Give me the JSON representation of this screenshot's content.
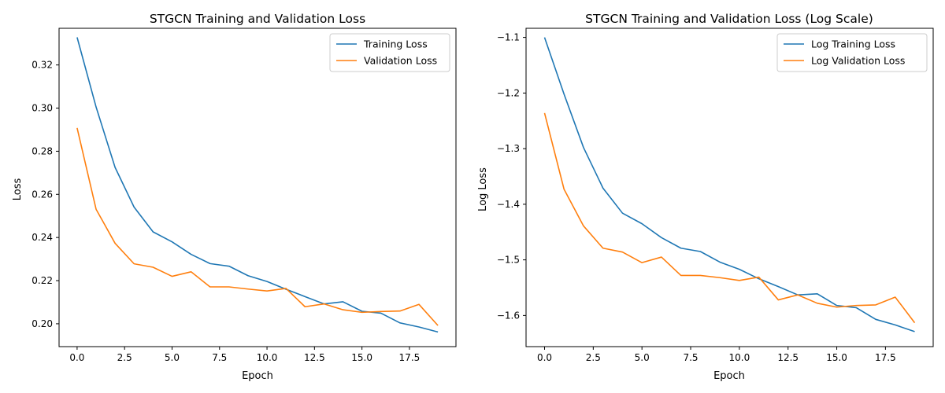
{
  "chart_data": [
    {
      "type": "line",
      "title": "STGCN Training and Validation Loss",
      "xlabel": "Epoch",
      "ylabel": "Loss",
      "x": [
        0,
        1,
        2,
        3,
        4,
        5,
        6,
        7,
        8,
        9,
        10,
        11,
        12,
        13,
        14,
        15,
        16,
        17,
        18,
        19
      ],
      "xlim": [
        -0.95,
        19.95
      ],
      "ylim": [
        0.1894,
        0.337
      ],
      "xticks": [
        0.0,
        2.5,
        5.0,
        7.5,
        10.0,
        12.5,
        15.0,
        17.5
      ],
      "xtick_labels": [
        "0.0",
        "2.5",
        "5.0",
        "7.5",
        "10.0",
        "12.5",
        "15.0",
        "17.5"
      ],
      "yticks": [
        0.2,
        0.22,
        0.24,
        0.26,
        0.28,
        0.3,
        0.32
      ],
      "ytick_labels": [
        "0.20",
        "0.22",
        "0.24",
        "0.26",
        "0.28",
        "0.30",
        "0.32"
      ],
      "grid": false,
      "legend_position": "top-right",
      "series": [
        {
          "name": "Training Loss",
          "color": "#1f77b4",
          "values": [
            0.3328,
            0.3005,
            0.2725,
            0.2541,
            0.2426,
            0.238,
            0.2322,
            0.2279,
            0.2267,
            0.2223,
            0.2196,
            0.216,
            0.2126,
            0.2092,
            0.2102,
            0.2058,
            0.2049,
            0.2004,
            0.1985,
            0.1962
          ]
        },
        {
          "name": "Validation Loss",
          "color": "#ff7f0e",
          "values": [
            0.2908,
            0.2531,
            0.2373,
            0.2278,
            0.2262,
            0.222,
            0.2241,
            0.2171,
            0.2171,
            0.2161,
            0.2152,
            0.2164,
            0.2079,
            0.2092,
            0.2065,
            0.2053,
            0.2057,
            0.2059,
            0.209,
            0.1992
          ]
        }
      ]
    },
    {
      "type": "line",
      "title": "STGCN Training and Validation Loss (Log Scale)",
      "xlabel": "Epoch",
      "ylabel": "Log Loss",
      "x": [
        0,
        1,
        2,
        3,
        4,
        5,
        6,
        7,
        8,
        9,
        10,
        11,
        12,
        13,
        14,
        15,
        16,
        17,
        18,
        19
      ],
      "xlim": [
        -0.95,
        19.95
      ],
      "ylim": [
        -1.656,
        -1.0836
      ],
      "xticks": [
        0.0,
        2.5,
        5.0,
        7.5,
        10.0,
        12.5,
        15.0,
        17.5
      ],
      "xtick_labels": [
        "0.0",
        "2.5",
        "5.0",
        "7.5",
        "10.0",
        "12.5",
        "15.0",
        "17.5"
      ],
      "yticks": [
        -1.6,
        -1.5,
        -1.4,
        -1.3,
        -1.2,
        -1.1
      ],
      "ytick_labels": [
        "−1.6",
        "−1.5",
        "−1.4",
        "−1.3",
        "−1.2",
        "−1.1"
      ],
      "grid": false,
      "legend_position": "top-right",
      "series": [
        {
          "name": "Log Training Loss",
          "color": "#1f77b4",
          "values": [
            -1.1,
            -1.202,
            -1.298,
            -1.371,
            -1.416,
            -1.435,
            -1.46,
            -1.479,
            -1.485,
            -1.504,
            -1.517,
            -1.534,
            -1.548,
            -1.563,
            -1.561,
            -1.582,
            -1.586,
            -1.607,
            -1.617,
            -1.629
          ]
        },
        {
          "name": "Log Validation Loss",
          "color": "#ff7f0e",
          "values": [
            -1.236,
            -1.373,
            -1.439,
            -1.479,
            -1.486,
            -1.505,
            -1.495,
            -1.528,
            -1.528,
            -1.532,
            -1.537,
            -1.531,
            -1.572,
            -1.563,
            -1.578,
            -1.585,
            -1.582,
            -1.581,
            -1.567,
            -1.613
          ]
        }
      ]
    }
  ]
}
